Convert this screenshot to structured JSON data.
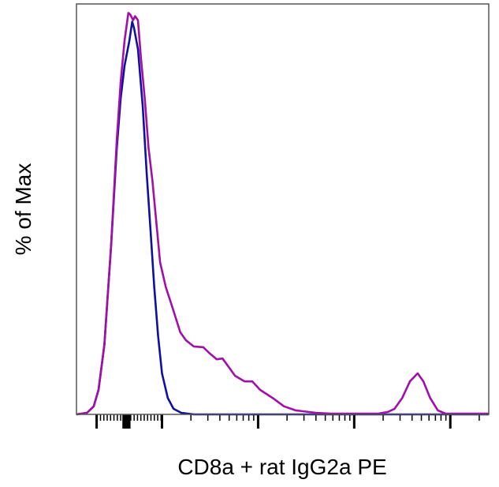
{
  "chart_data": {
    "type": "line",
    "title": "",
    "xlabel": "CD8a + rat IgG2a PE",
    "ylabel": "% of Max",
    "x_scale": "log (biexponential)",
    "xlim": [
      0.11,
      4.4
    ],
    "ylim": [
      0,
      100
    ],
    "x_major_ticks": [
      0.32,
      1,
      2,
      3,
      4
    ],
    "tick_labels_shown": false,
    "grid": false,
    "legend": "none",
    "series": [
      {
        "color": "#a010a8",
        "points": [
          [
            0.11,
            0
          ],
          [
            0.22,
            0.4
          ],
          [
            0.29,
            2.0
          ],
          [
            0.34,
            6.1
          ],
          [
            0.4,
            17.3
          ],
          [
            0.47,
            41.8
          ],
          [
            0.53,
            68.4
          ],
          [
            0.57,
            82.7
          ],
          [
            0.61,
            92.9
          ],
          [
            0.65,
            99.8
          ],
          [
            0.67,
            99.4
          ],
          [
            0.7,
            98.0
          ],
          [
            0.72,
            99.0
          ],
          [
            0.75,
            98.0
          ],
          [
            0.78,
            88.8
          ],
          [
            0.82,
            78.6
          ],
          [
            0.86,
            66.3
          ],
          [
            0.9,
            58.2
          ],
          [
            0.94,
            48.0
          ],
          [
            0.98,
            37.8
          ],
          [
            1.04,
            31.6
          ],
          [
            1.11,
            26.5
          ],
          [
            1.19,
            20.4
          ],
          [
            1.25,
            18.4
          ],
          [
            1.33,
            16.9
          ],
          [
            1.43,
            16.7
          ],
          [
            1.49,
            15.3
          ],
          [
            1.57,
            13.7
          ],
          [
            1.63,
            13.9
          ],
          [
            1.7,
            11.6
          ],
          [
            1.76,
            9.6
          ],
          [
            1.86,
            8.2
          ],
          [
            1.94,
            8.2
          ],
          [
            2.02,
            6.1
          ],
          [
            2.15,
            4.1
          ],
          [
            2.27,
            2.0
          ],
          [
            2.39,
            1.0
          ],
          [
            2.6,
            0.4
          ],
          [
            2.76,
            0.2
          ],
          [
            3.25,
            0.2
          ],
          [
            3.35,
            0.6
          ],
          [
            3.42,
            1.4
          ],
          [
            3.5,
            4.1
          ],
          [
            3.58,
            8.2
          ],
          [
            3.66,
            10.2
          ],
          [
            3.72,
            8.2
          ],
          [
            3.79,
            4.1
          ],
          [
            3.87,
            1.0
          ],
          [
            3.95,
            0.2
          ],
          [
            4.4,
            0.2
          ]
        ]
      },
      {
        "color": "#1010a0",
        "points": [
          [
            0.11,
            0
          ],
          [
            0.22,
            0.4
          ],
          [
            0.29,
            2.0
          ],
          [
            0.34,
            6.1
          ],
          [
            0.4,
            17.3
          ],
          [
            0.47,
            41.8
          ],
          [
            0.53,
            66.3
          ],
          [
            0.57,
            78.6
          ],
          [
            0.61,
            86.7
          ],
          [
            0.66,
            92.9
          ],
          [
            0.69,
            97.6
          ],
          [
            0.71,
            96.0
          ],
          [
            0.75,
            90.8
          ],
          [
            0.8,
            76.5
          ],
          [
            0.84,
            60.2
          ],
          [
            0.88,
            45.9
          ],
          [
            0.92,
            31.6
          ],
          [
            0.96,
            19.4
          ],
          [
            1.0,
            10.2
          ],
          [
            1.06,
            4.1
          ],
          [
            1.12,
            1.4
          ],
          [
            1.2,
            0.4
          ],
          [
            1.33,
            0
          ],
          [
            4.4,
            0
          ]
        ]
      }
    ]
  }
}
